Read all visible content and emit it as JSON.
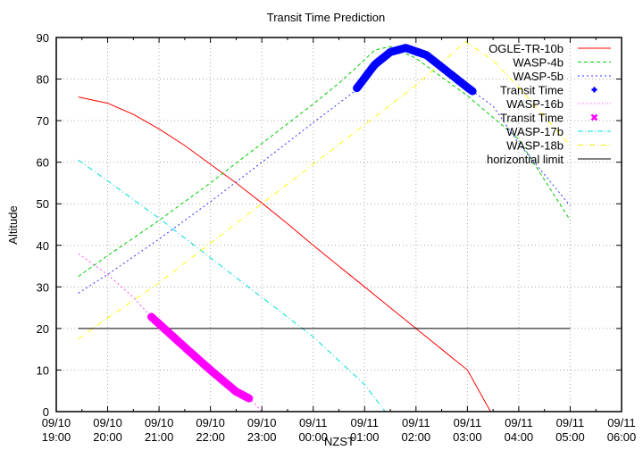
{
  "chart_data": {
    "type": "line",
    "title": "Transit Time Prediction",
    "xlabel": "NZST",
    "ylabel": "Altitude",
    "ylim": [
      0,
      90
    ],
    "yticks": [
      0,
      10,
      20,
      30,
      40,
      50,
      60,
      70,
      80,
      90
    ],
    "xlim_hours": [
      0,
      11
    ],
    "x_origin": "09/10 19:00",
    "xticks": [
      {
        "date": "09/10",
        "time": "19:00"
      },
      {
        "date": "09/10",
        "time": "20:00"
      },
      {
        "date": "09/10",
        "time": "21:00"
      },
      {
        "date": "09/10",
        "time": "22:00"
      },
      {
        "date": "09/10",
        "time": "23:00"
      },
      {
        "date": "09/11",
        "time": "00:00"
      },
      {
        "date": "09/11",
        "time": "01:00"
      },
      {
        "date": "09/11",
        "time": "02:00"
      },
      {
        "date": "09/11",
        "time": "03:00"
      },
      {
        "date": "09/11",
        "time": "04:00"
      },
      {
        "date": "09/11",
        "time": "05:00"
      },
      {
        "date": "09/11",
        "time": "06:00"
      }
    ],
    "grid": true,
    "legend_position": "top-right-inside",
    "series": [
      {
        "name": "OGLE-TR-10b",
        "color": "#ff0000",
        "style": "solid",
        "x": [
          0.43,
          1.0,
          1.5,
          2.0,
          2.5,
          3.0,
          3.5,
          4.0,
          4.5,
          5.0,
          5.5,
          6.0,
          6.5,
          7.0,
          7.5,
          8.0,
          8.45
        ],
        "y": [
          75.7,
          74.2,
          71.5,
          68.0,
          64.0,
          59.5,
          55.0,
          50.2,
          45.2,
          40.0,
          35.0,
          30.0,
          25.0,
          20.0,
          15.0,
          10.0,
          0.0
        ]
      },
      {
        "name": "WASP-4b",
        "color": "#00cc00",
        "style": "dashed",
        "x": [
          0.43,
          1.0,
          2.0,
          3.0,
          4.0,
          5.0,
          5.5,
          5.9,
          6.2,
          6.5,
          7.0,
          8.0,
          9.0,
          10.0
        ],
        "y": [
          32.5,
          37.5,
          46.0,
          55.0,
          64.5,
          74.0,
          79.0,
          83.5,
          87.0,
          87.8,
          85.0,
          76.0,
          65.5,
          46.0
        ]
      },
      {
        "name": "WASP-5b",
        "color": "#3333ff",
        "style": "dotted",
        "x": [
          0.43,
          1.0,
          2.0,
          3.0,
          4.0,
          5.0,
          5.8,
          6.2,
          6.5,
          6.8,
          7.2,
          8.0,
          8.5,
          9.0,
          10.0
        ],
        "y": [
          28.5,
          33.0,
          41.5,
          50.5,
          60.0,
          69.5,
          77.0,
          83.5,
          86.5,
          87.5,
          85.8,
          78.0,
          73.5,
          64.5,
          49.5
        ]
      },
      {
        "name": "Transit Time",
        "for": "WASP-5b",
        "color": "#0000ff",
        "marker": "plus",
        "x_range": [
          5.85,
          8.1
        ],
        "y_start": 83.8,
        "y_peak": 87.3,
        "y_end": 69.8
      },
      {
        "name": "WASP-16b",
        "color": "#ff44ff",
        "style": "dotted",
        "x": [
          0.43,
          1.0,
          1.5,
          1.85,
          2.5,
          3.0,
          3.5,
          3.78,
          4.0
        ],
        "y": [
          38.0,
          33.0,
          27.5,
          22.8,
          15.5,
          10.0,
          4.8,
          3.0,
          0.0
        ]
      },
      {
        "name": "Transit Time",
        "for": "WASP-16b",
        "color": "#ff00ff",
        "marker": "cross",
        "x_range": [
          1.85,
          3.78
        ],
        "y_start": 22.8,
        "y_end": 3.0
      },
      {
        "name": "WASP-17b",
        "color": "#00dddd",
        "style": "dash-dot",
        "x": [
          0.43,
          1.0,
          2.0,
          3.0,
          4.0,
          5.0,
          6.0,
          6.4
        ],
        "y": [
          60.5,
          55.5,
          46.5,
          37.0,
          27.5,
          18.0,
          6.5,
          0.0
        ]
      },
      {
        "name": "WASP-18b",
        "color": "#ffff00",
        "style": "dash-dot",
        "x": [
          0.43,
          1.0,
          2.0,
          3.0,
          4.0,
          5.0,
          6.0,
          7.0,
          7.5,
          7.97,
          8.5,
          9.0,
          10.0
        ],
        "y": [
          17.5,
          22.5,
          31.0,
          40.5,
          50.0,
          59.5,
          69.0,
          78.5,
          84.0,
          89.0,
          84.5,
          78.0,
          64.0
        ]
      },
      {
        "name": "horizontial limit",
        "color": "#000000",
        "style": "solid",
        "x": [
          0.43,
          10.0
        ],
        "y": [
          20,
          20
        ]
      }
    ]
  },
  "legend": [
    {
      "label": "OGLE-TR-10b",
      "color": "#ff0000",
      "kind": "line",
      "dash": ""
    },
    {
      "label": "WASP-4b",
      "color": "#00cc00",
      "kind": "line",
      "dash": "4,3"
    },
    {
      "label": "WASP-5b",
      "color": "#3333ff",
      "kind": "line",
      "dash": "2,3"
    },
    {
      "label": "Transit Time",
      "color": "#0000ff",
      "kind": "plus",
      "dash": ""
    },
    {
      "label": "WASP-16b",
      "color": "#ff44ff",
      "kind": "line",
      "dash": "1,2"
    },
    {
      "label": "Transit Time",
      "color": "#ff00ff",
      "kind": "cross",
      "dash": ""
    },
    {
      "label": "WASP-17b",
      "color": "#00dddd",
      "kind": "line",
      "dash": "6,2,1,2"
    },
    {
      "label": "WASP-18b",
      "color": "#eeee00",
      "kind": "line",
      "dash": "6,3,1,3"
    },
    {
      "label": "horizontial limit",
      "color": "#000000",
      "kind": "line",
      "dash": ""
    }
  ]
}
